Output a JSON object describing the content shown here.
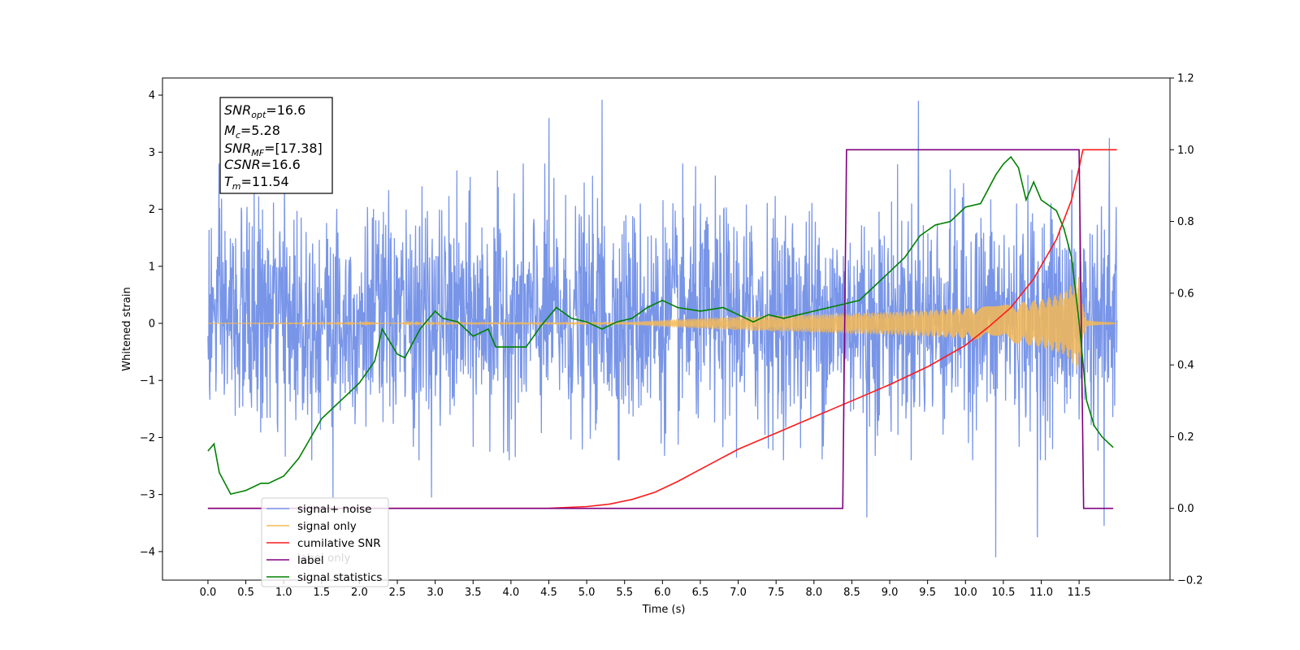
{
  "chart_data": {
    "type": "line",
    "title": "",
    "xlabel": "Time (s)",
    "ylabel": "Whitened strain",
    "xlim": [
      -0.6,
      12.7
    ],
    "ylim": [
      -4.5,
      4.3
    ],
    "y2lim": [
      -0.2,
      1.2
    ],
    "grid": false,
    "legend_location": "lower-left",
    "x_ticks": [
      0.0,
      0.5,
      1.0,
      1.5,
      2.0,
      2.5,
      3.0,
      3.5,
      4.0,
      4.5,
      5.0,
      5.5,
      6.0,
      6.5,
      7.0,
      7.5,
      8.0,
      8.5,
      9.0,
      9.5,
      10.0,
      10.5,
      11.0,
      11.5
    ],
    "x_tick_labels": [
      "0.0",
      "0.5",
      "1.0",
      "1.5",
      "2.0",
      "2.5",
      "3.0",
      "3.5",
      "4.0",
      "4.5",
      "5.0",
      "5.5",
      "6.0",
      "6.5",
      "7.0",
      "7.5",
      "8.0",
      "8.5",
      "9.0",
      "9.5",
      "10.0",
      "10.5",
      "11.0",
      "11.5"
    ],
    "y_ticks": [
      -4,
      -3,
      -2,
      -1,
      0,
      1,
      2,
      3,
      4
    ],
    "y_tick_labels": [
      "−4",
      "−3",
      "−2",
      "−1",
      "0",
      "1",
      "2",
      "3",
      "4"
    ],
    "y2_ticks": [
      -0.2,
      0.0,
      0.2,
      0.4,
      0.6,
      0.8,
      1.0,
      1.2
    ],
    "y2_tick_labels": [
      "−0.2",
      "0.0",
      "0.2",
      "0.4",
      "0.6",
      "0.8",
      "1.0",
      "1.2"
    ],
    "series": [
      {
        "name": "signal+ noise",
        "color": "#7895e8",
        "axis": "left",
        "kind": "noise",
        "x_range": [
          0.0,
          12.0
        ],
        "typical_amplitude": [
          -1.8,
          2.3
        ],
        "notable_spikes": [
          [
            5.2,
            3.92
          ],
          [
            9.38,
            3.9
          ],
          [
            4.5,
            3.6
          ],
          [
            11.9,
            3.25
          ],
          [
            10.4,
            -4.1
          ],
          [
            10.95,
            -3.75
          ],
          [
            11.83,
            -3.55
          ],
          [
            8.7,
            -3.4
          ],
          [
            2.95,
            -3.05
          ],
          [
            1.65,
            -3.05
          ]
        ]
      },
      {
        "name": "signal only",
        "color": "#f5b855",
        "axis": "left",
        "kind": "chirp",
        "x": [
          0.0,
          5.5,
          6.0,
          6.5,
          7.0,
          7.5,
          8.0,
          8.5,
          9.0,
          9.5,
          10.0,
          10.5,
          11.0,
          11.3,
          11.45,
          11.5,
          11.55,
          11.6,
          12.0
        ],
        "envelope": [
          0.0,
          0.02,
          0.06,
          0.09,
          0.12,
          0.14,
          0.16,
          0.18,
          0.2,
          0.23,
          0.27,
          0.32,
          0.42,
          0.55,
          0.75,
          0.85,
          0.3,
          0.05,
          0.0
        ]
      },
      {
        "name": "cumilative SNR",
        "color": "#ff1a1a",
        "axis": "right",
        "x": [
          0.0,
          4.0,
          4.5,
          5.0,
          5.3,
          5.6,
          5.9,
          6.2,
          6.6,
          7.0,
          7.5,
          8.0,
          8.5,
          9.0,
          9.5,
          10.0,
          10.3,
          10.6,
          10.9,
          11.2,
          11.4,
          11.5,
          11.55,
          11.6,
          11.8,
          12.0
        ],
        "values": [
          0.0,
          0.0,
          0.0005,
          0.005,
          0.012,
          0.025,
          0.045,
          0.075,
          0.12,
          0.165,
          0.21,
          0.255,
          0.3,
          0.345,
          0.395,
          0.455,
          0.505,
          0.56,
          0.64,
          0.75,
          0.86,
          0.95,
          1.0,
          1.0,
          1.0,
          1.0
        ]
      },
      {
        "name": "label",
        "color": "#800080",
        "axis": "right",
        "x": [
          0.0,
          8.38,
          8.43,
          11.5,
          11.56,
          11.95
        ],
        "values": [
          0.0,
          0.0,
          1.0,
          1.0,
          0.0,
          0.0
        ]
      },
      {
        "name": "label only",
        "color": "#d9d9d9",
        "axis": "right",
        "legend_only": true,
        "x": [],
        "values": []
      },
      {
        "name": "signal statistics",
        "color": "#008000",
        "axis": "right",
        "x": [
          0.0,
          0.08,
          0.15,
          0.3,
          0.5,
          0.7,
          0.8,
          1.0,
          1.2,
          1.5,
          1.7,
          1.8,
          2.0,
          2.2,
          2.3,
          2.5,
          2.6,
          2.8,
          3.0,
          3.1,
          3.3,
          3.5,
          3.7,
          3.8,
          4.0,
          4.2,
          4.4,
          4.6,
          4.8,
          5.0,
          5.2,
          5.4,
          5.6,
          5.8,
          6.0,
          6.2,
          6.5,
          6.8,
          7.0,
          7.2,
          7.4,
          7.6,
          7.8,
          8.0,
          8.2,
          8.4,
          8.6,
          8.8,
          9.0,
          9.2,
          9.4,
          9.6,
          9.8,
          10.0,
          10.2,
          10.4,
          10.5,
          10.6,
          10.7,
          10.8,
          10.9,
          11.0,
          11.2,
          11.3,
          11.4,
          11.5,
          11.6,
          11.7,
          11.8,
          11.9,
          11.95
        ],
        "values": [
          0.16,
          0.18,
          0.1,
          0.04,
          0.05,
          0.07,
          0.07,
          0.09,
          0.14,
          0.25,
          0.29,
          0.31,
          0.35,
          0.41,
          0.5,
          0.43,
          0.42,
          0.5,
          0.55,
          0.53,
          0.52,
          0.48,
          0.5,
          0.45,
          0.45,
          0.45,
          0.51,
          0.56,
          0.53,
          0.52,
          0.5,
          0.52,
          0.53,
          0.56,
          0.58,
          0.56,
          0.55,
          0.56,
          0.54,
          0.52,
          0.54,
          0.53,
          0.54,
          0.55,
          0.56,
          0.57,
          0.58,
          0.62,
          0.66,
          0.7,
          0.76,
          0.79,
          0.8,
          0.84,
          0.85,
          0.93,
          0.96,
          0.98,
          0.95,
          0.86,
          0.91,
          0.86,
          0.83,
          0.78,
          0.7,
          0.52,
          0.3,
          0.23,
          0.2,
          0.18,
          0.17
        ]
      }
    ],
    "annotation_box": {
      "lines": [
        {
          "main": "SNR",
          "sub": "opt",
          "value": "=16.6"
        },
        {
          "main": "M",
          "sub": "c",
          "value": "=5.28"
        },
        {
          "main": "SNR",
          "sub": "MF",
          "value": "=[17.38]"
        },
        {
          "main": "CSNR",
          "sub": "",
          "value": "=16.6"
        },
        {
          "main": "T",
          "sub": "m",
          "value": "=11.54"
        }
      ]
    },
    "legend": [
      {
        "label": "signal+ noise",
        "color": "#7895e8"
      },
      {
        "label": "signal only",
        "color": "#f5b855"
      },
      {
        "label": "cumilative SNR",
        "color": "#ff1a1a"
      },
      {
        "label": "label",
        "color": "#800080"
      },
      {
        "label": "signal statistics",
        "color": "#008000"
      }
    ]
  }
}
